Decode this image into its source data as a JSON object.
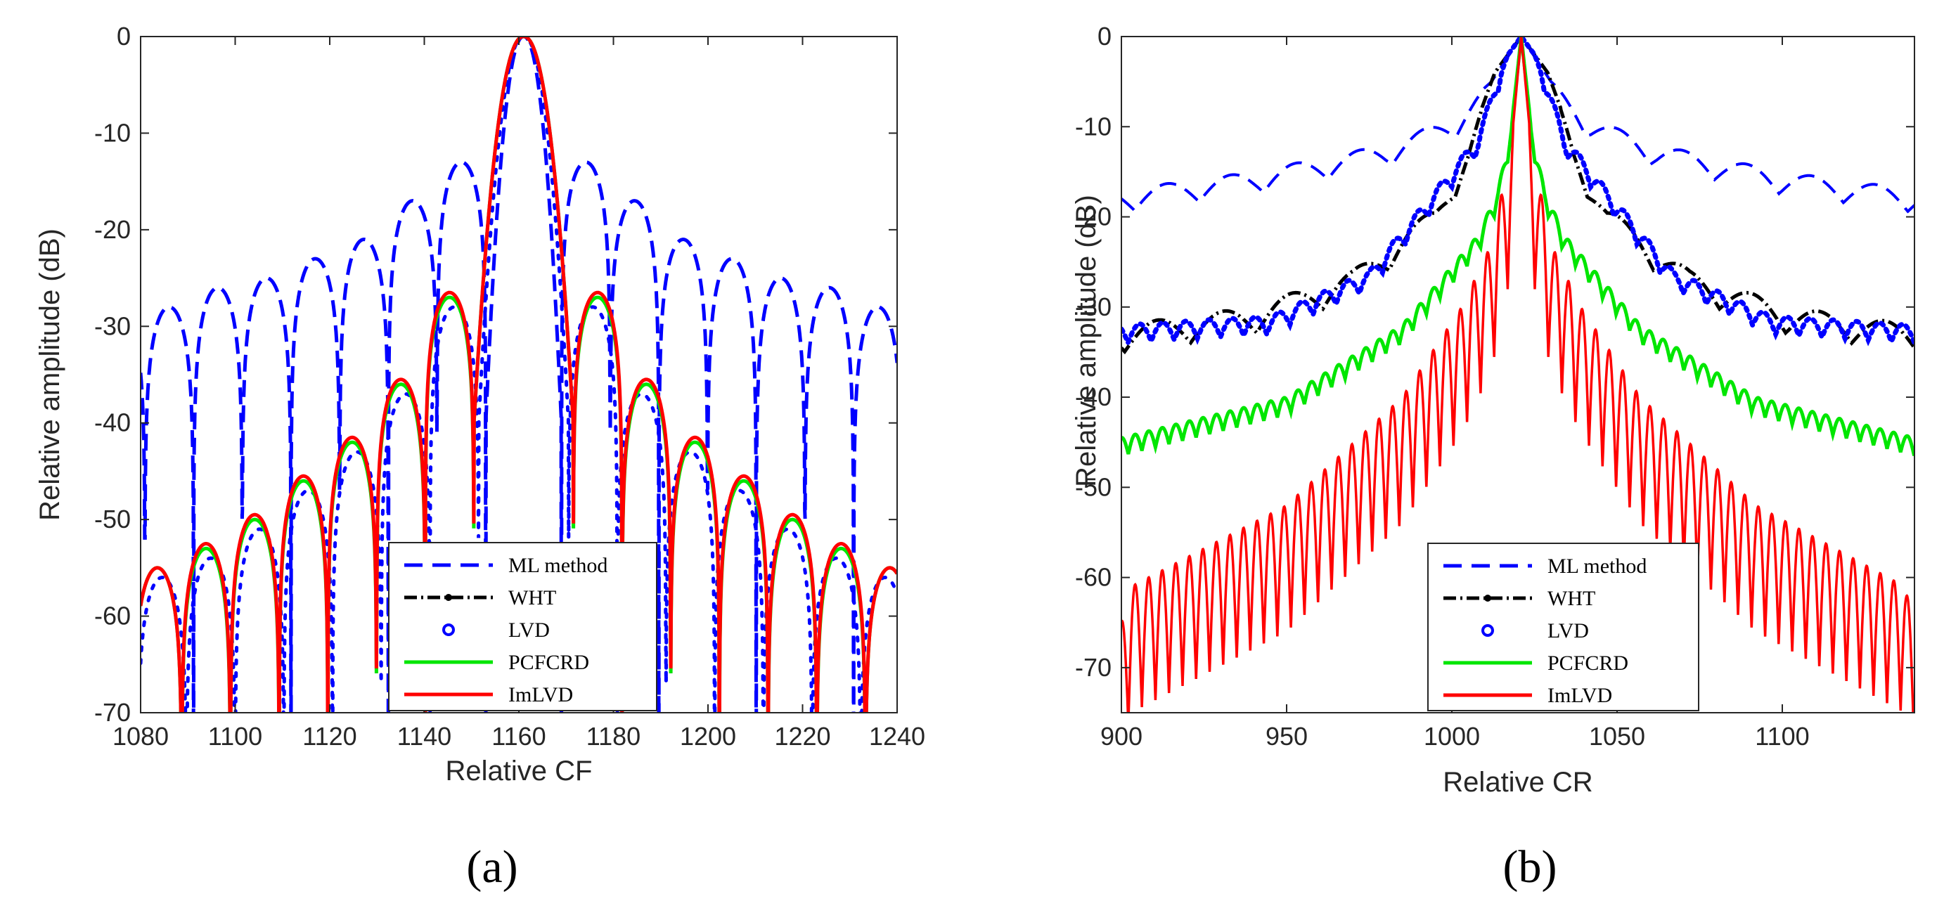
{
  "chart_data": [
    {
      "type": "line",
      "panel_label": "(a)",
      "xlabel": "Relative CF",
      "ylabel": "Relative amplitude (dB)",
      "xlim": [
        1080,
        1240
      ],
      "ylim": [
        -70,
        0
      ],
      "xticks": [
        1080,
        1100,
        1120,
        1140,
        1160,
        1180,
        1200,
        1220,
        1240
      ],
      "yticks": [
        0,
        -10,
        -20,
        -30,
        -40,
        -50,
        -60,
        -70
      ],
      "peak_x": 1161,
      "legend_position": "bottom-right",
      "series": [
        {
          "name": "ML method",
          "style": "dashed",
          "color": "#0000ff",
          "main_lobe_half_width": 8.0,
          "sidelobe_spacing": 10.3,
          "sidelobe_peaks": [
            {
              "x": 1140,
              "y": -13
            },
            {
              "x": 1130,
              "y": -17
            },
            {
              "x": 1119,
              "y": -21
            },
            {
              "x": 1109,
              "y": -23
            },
            {
              "x": 1099,
              "y": -25
            },
            {
              "x": 1089,
              "y": -26
            },
            {
              "x": 1082,
              "y": -28
            }
          ]
        },
        {
          "name": "WHT",
          "style": "dashdot-dot",
          "color": "#000000",
          "main_lobe_half_width": 10.5,
          "sidelobe_spacing": 10.3,
          "sidelobe_peaks": [
            {
              "x": 1147,
              "y": -27
            },
            {
              "x": 1136,
              "y": -36
            },
            {
              "x": 1126,
              "y": -42
            },
            {
              "x": 1116,
              "y": -46
            },
            {
              "x": 1106,
              "y": -50
            },
            {
              "x": 1096,
              "y": -53
            },
            {
              "x": 1086,
              "y": -55
            }
          ]
        },
        {
          "name": "LVD",
          "style": "circle-markers",
          "color": "#0000ff",
          "main_lobe_half_width": 9.5,
          "sidelobe_spacing": 10.3,
          "sidelobe_peaks": [
            {
              "x": 1147,
              "y": -28
            },
            {
              "x": 1136,
              "y": -37
            },
            {
              "x": 1126,
              "y": -43
            },
            {
              "x": 1116,
              "y": -47
            },
            {
              "x": 1106,
              "y": -51
            },
            {
              "x": 1096,
              "y": -54
            },
            {
              "x": 1086,
              "y": -56
            }
          ]
        },
        {
          "name": "PCFCRD",
          "style": "solid",
          "color": "#00e600",
          "main_lobe_half_width": 10.5,
          "sidelobe_spacing": 10.3,
          "sidelobe_peaks": [
            {
              "x": 1147,
              "y": -27
            },
            {
              "x": 1136,
              "y": -36
            },
            {
              "x": 1126,
              "y": -42
            },
            {
              "x": 1116,
              "y": -46
            },
            {
              "x": 1106,
              "y": -50
            },
            {
              "x": 1096,
              "y": -53
            },
            {
              "x": 1086,
              "y": -55
            }
          ]
        },
        {
          "name": "ImLVD",
          "style": "solid",
          "color": "#ff0000",
          "main_lobe_half_width": 10.5,
          "sidelobe_spacing": 10.3,
          "sidelobe_peaks": [
            {
              "x": 1147,
              "y": -26.5
            },
            {
              "x": 1136,
              "y": -35.5
            },
            {
              "x": 1126,
              "y": -41.5
            },
            {
              "x": 1116,
              "y": -45.5
            },
            {
              "x": 1106,
              "y": -49.5
            },
            {
              "x": 1096,
              "y": -52.5
            },
            {
              "x": 1086,
              "y": -55
            }
          ]
        }
      ]
    },
    {
      "type": "line",
      "panel_label": "(b)",
      "xlabel": "Relative CR",
      "ylabel": "Relative amplitude (dB)",
      "xlim": [
        900,
        1140
      ],
      "ylim": [
        -75,
        0
      ],
      "xticks": [
        900,
        950,
        1000,
        1050,
        1100
      ],
      "yticks": [
        0,
        -10,
        -20,
        -30,
        -40,
        -50,
        -60,
        -70
      ],
      "peak_x": 1021,
      "legend_position": "bottom-center",
      "series": [
        {
          "name": "ML method",
          "style": "dashed",
          "color": "#0000ff",
          "envelope": [
            {
              "x": 900,
              "y": -17
            },
            {
              "x": 940,
              "y": -15
            },
            {
              "x": 980,
              "y": -12
            },
            {
              "x": 1000,
              "y": -9
            },
            {
              "x": 1012,
              "y": -5
            },
            {
              "x": 1021,
              "y": 0
            },
            {
              "x": 1030,
              "y": -5
            },
            {
              "x": 1042,
              "y": -9
            },
            {
              "x": 1062,
              "y": -12
            },
            {
              "x": 1100,
              "y": -15
            },
            {
              "x": 1140,
              "y": -17
            }
          ],
          "ripple_period": 19.5,
          "ripple_depth": 2.5
        },
        {
          "name": "WHT",
          "style": "dashdot-dot",
          "color": "#000000",
          "envelope": [
            {
              "x": 900,
              "y": -32
            },
            {
              "x": 940,
              "y": -30
            },
            {
              "x": 970,
              "y": -26
            },
            {
              "x": 995,
              "y": -19
            },
            {
              "x": 1005,
              "y": -12
            },
            {
              "x": 1013,
              "y": -4
            },
            {
              "x": 1021,
              "y": 0
            },
            {
              "x": 1029,
              "y": -4
            },
            {
              "x": 1037,
              "y": -12
            },
            {
              "x": 1047,
              "y": -19
            },
            {
              "x": 1072,
              "y": -26
            },
            {
              "x": 1102,
              "y": -30
            },
            {
              "x": 1140,
              "y": -32
            }
          ],
          "ripple_period": 20,
          "ripple_depth": 3
        },
        {
          "name": "LVD",
          "style": "circle-markers",
          "color": "#0000ff",
          "envelope": [
            {
              "x": 900,
              "y": -32
            },
            {
              "x": 945,
              "y": -31
            },
            {
              "x": 975,
              "y": -26
            },
            {
              "x": 995,
              "y": -17
            },
            {
              "x": 1008,
              "y": -11
            },
            {
              "x": 1015,
              "y": -3
            },
            {
              "x": 1021,
              "y": 0
            },
            {
              "x": 1027,
              "y": -3
            },
            {
              "x": 1034,
              "y": -11
            },
            {
              "x": 1047,
              "y": -17
            },
            {
              "x": 1067,
              "y": -26
            },
            {
              "x": 1097,
              "y": -31
            },
            {
              "x": 1140,
              "y": -32
            }
          ],
          "ripple_period": 7,
          "ripple_depth": 2
        },
        {
          "name": "PCFCRD",
          "style": "solid",
          "color": "#00e600",
          "envelope": [
            {
              "x": 900,
              "y": -44.5
            },
            {
              "x": 950,
              "y": -40
            },
            {
              "x": 985,
              "y": -32
            },
            {
              "x": 1008,
              "y": -22
            },
            {
              "x": 1014,
              "y": -17
            },
            {
              "x": 1018,
              "y": -10
            },
            {
              "x": 1021,
              "y": 0
            },
            {
              "x": 1024,
              "y": -10
            },
            {
              "x": 1028,
              "y": -17
            },
            {
              "x": 1034,
              "y": -22
            },
            {
              "x": 1057,
              "y": -32
            },
            {
              "x": 1092,
              "y": -40
            },
            {
              "x": 1140,
              "y": -44.5
            }
          ],
          "ripple_period": 4.1,
          "ripple_depth": 2
        },
        {
          "name": "ImLVD",
          "style": "solid",
          "color": "#ff0000",
          "envelope": [
            {
              "x": 900,
              "y": -65
            },
            {
              "x": 903,
              "y": -61
            },
            {
              "x": 950,
              "y": -52
            },
            {
              "x": 985,
              "y": -40
            },
            {
              "x": 1003,
              "y": -30
            },
            {
              "x": 1012,
              "y": -23
            },
            {
              "x": 1018,
              "y": -12
            },
            {
              "x": 1021,
              "y": 0
            },
            {
              "x": 1024,
              "y": -12
            },
            {
              "x": 1030,
              "y": -23
            },
            {
              "x": 1039,
              "y": -30
            },
            {
              "x": 1057,
              "y": -40
            },
            {
              "x": 1092,
              "y": -52
            },
            {
              "x": 1137,
              "y": -61
            },
            {
              "x": 1140,
              "y": -65
            }
          ],
          "ripple_period": 4.1,
          "ripple_depth": 14
        }
      ]
    }
  ]
}
